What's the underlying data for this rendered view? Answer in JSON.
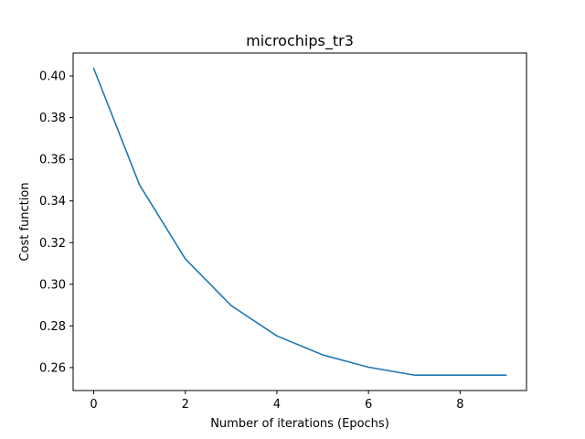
{
  "chart_data": {
    "type": "line",
    "title": "microchips_tr3",
    "xlabel": "Number of iterations (Epochs)",
    "ylabel": "Cost function",
    "xlim": [
      -0.45,
      9.45
    ],
    "ylim": [
      0.249,
      0.411
    ],
    "xticks": [
      0,
      2,
      4,
      6,
      8
    ],
    "xtick_labels": [
      "0",
      "2",
      "4",
      "6",
      "8"
    ],
    "yticks": [
      0.26,
      0.28,
      0.3,
      0.32,
      0.34,
      0.36,
      0.38,
      0.4
    ],
    "ytick_labels": [
      "0.26",
      "0.28",
      "0.30",
      "0.32",
      "0.34",
      "0.36",
      "0.38",
      "0.40"
    ],
    "grid": false,
    "series": [
      {
        "color": "#1f77b4",
        "x": [
          0,
          1,
          2,
          3,
          4,
          5,
          6,
          7,
          8,
          9
        ],
        "y": [
          0.4036,
          0.3477,
          0.3122,
          0.2898,
          0.2752,
          0.2661,
          0.2602,
          0.2564,
          0.2564,
          0.2564
        ]
      }
    ]
  }
}
